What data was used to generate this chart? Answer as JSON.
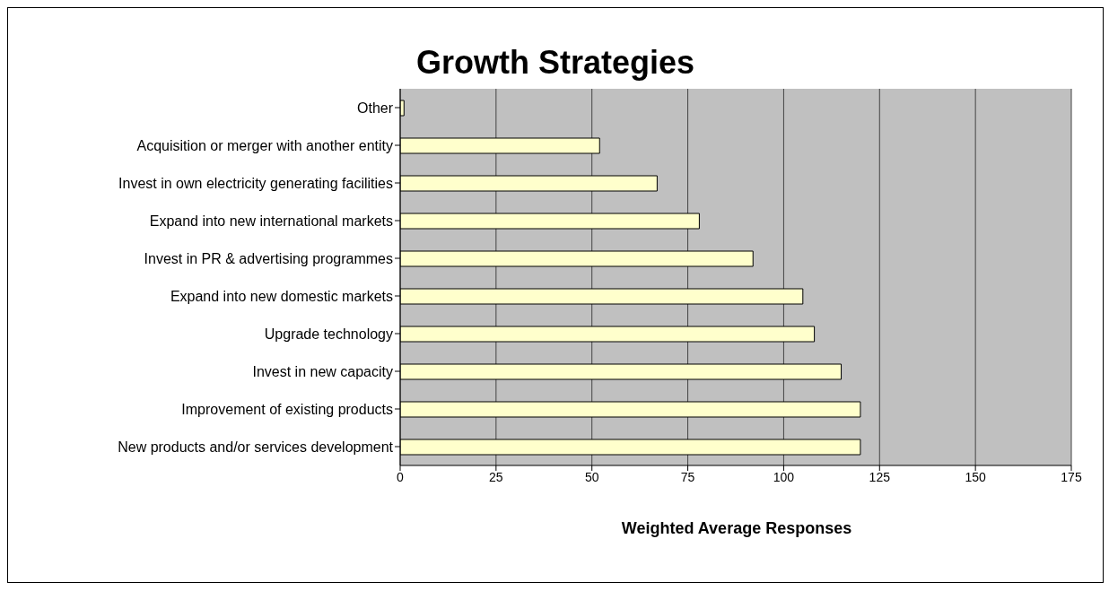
{
  "chart_data": {
    "type": "bar",
    "orientation": "horizontal",
    "title": "Growth Strategies",
    "xlabel": "Weighted Average Responses",
    "categories": [
      "Other",
      "Acquisition or merger with another entity",
      "Invest in own electricity generating facilities",
      "Expand into new international markets",
      "Invest in PR & advertising programmes",
      "Expand into new domestic markets",
      "Upgrade technology",
      "Invest in  new capacity",
      "Improvement of existing products",
      "New products and/or services development"
    ],
    "values": [
      1,
      52,
      67,
      78,
      92,
      105,
      108,
      115,
      120,
      120
    ],
    "color": "#ffffcc",
    "xlim": [
      0,
      175
    ],
    "xticks": [
      0,
      25,
      50,
      75,
      100,
      125,
      150,
      175
    ],
    "grid": "x",
    "legend": false
  }
}
